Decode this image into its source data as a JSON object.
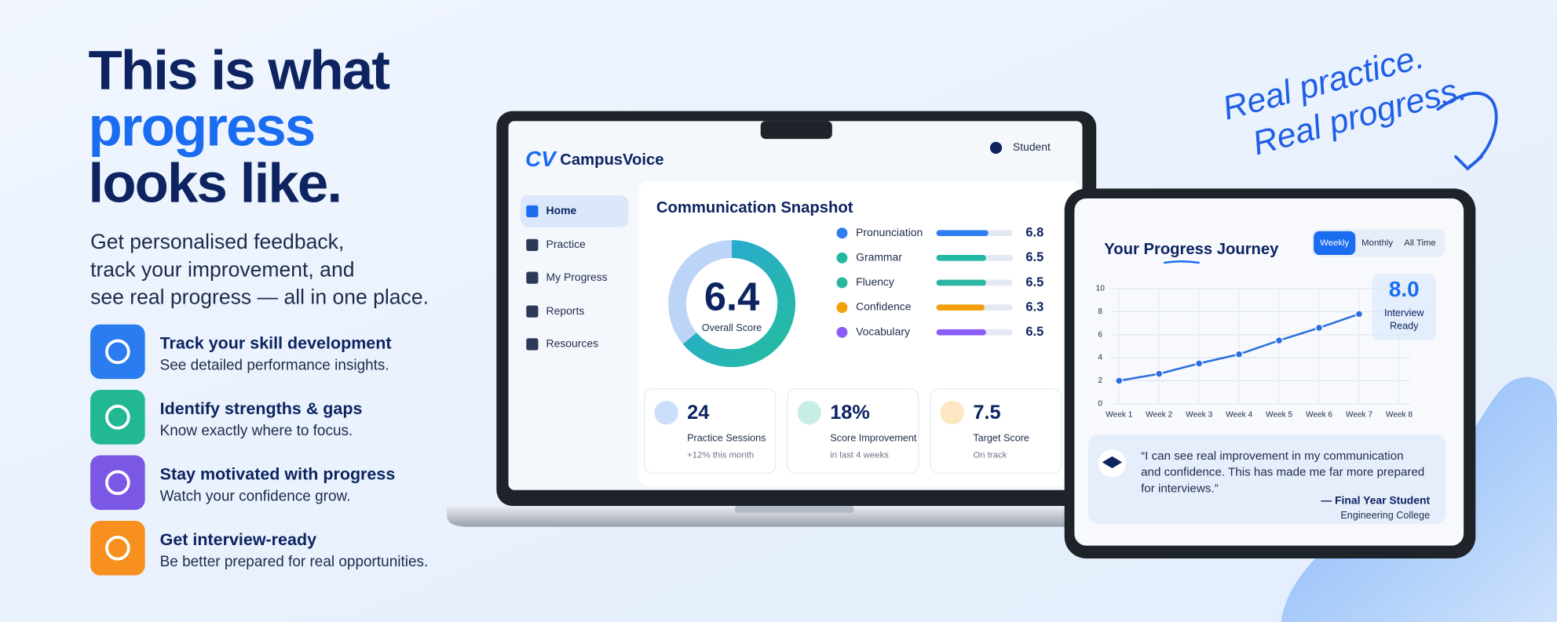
{
  "header": {
    "title_lines": [
      "This is what",
      "progress",
      "looks like."
    ],
    "subtitle_lines": [
      "Get personalised feedback,",
      "track your improvement, and",
      "see real progress — all in one place."
    ]
  },
  "features": [
    {
      "title": "Track your skill development",
      "description": "See detailed performance insights."
    },
    {
      "title": "Identify strengths & gaps",
      "description": "Know exactly where to focus."
    },
    {
      "title": "Stay motivated with progress",
      "description": "Watch your confidence grow."
    },
    {
      "title": "Get interview-ready",
      "description": "Be better prepared for real opportunities."
    }
  ],
  "laptop": {
    "brand": "CampusVoice",
    "logo": "CV",
    "user": "Student",
    "nav": [
      "Home",
      "Practice",
      "My Progress",
      "Reports",
      "Resources"
    ],
    "snapshot": {
      "title": "Communication Snapshot",
      "overall_score": 6.4,
      "overall_label": "Overall Score",
      "skills": [
        {
          "name": "Pronunciation",
          "value": 6.8
        },
        {
          "name": "Grammar",
          "value": 6.5
        },
        {
          "name": "Fluency",
          "value": 6.5
        },
        {
          "name": "Confidence",
          "value": 6.3
        },
        {
          "name": "Vocabulary",
          "value": 6.5
        }
      ]
    },
    "stats": [
      {
        "value": "24",
        "label": "Practice Sessions",
        "note": "+12% this month"
      },
      {
        "value": "18%",
        "label": "Score Improvement",
        "note": "in last 4 weeks"
      },
      {
        "value": "7.5",
        "label": "Target Score",
        "note": "On track"
      }
    ]
  },
  "tablet": {
    "title": "Your Progress Journey",
    "tabs": [
      "Weekly",
      "Monthly",
      "All Time"
    ],
    "chart": {
      "type": "line",
      "categories": [
        "Week 1",
        "Week 2",
        "Week 3",
        "Week 4",
        "Week 5",
        "Week 6",
        "Week 7",
        "Week 8"
      ],
      "values": [
        2.0,
        2.6,
        3.5,
        4.3,
        5.5,
        6.6,
        7.8,
        null
      ],
      "ylim": [
        0,
        10
      ],
      "yticks": [
        0,
        2,
        4,
        6,
        8,
        10
      ]
    },
    "badge": {
      "value": "8.0",
      "label_lines": [
        "Interview",
        "Ready"
      ]
    },
    "testimonial": {
      "quote_lines": [
        "“I can see real improvement in my communication",
        "and confidence. This has made me far more prepared",
        "for interviews.”"
      ],
      "author": "— Final Year Student",
      "affiliation": "Engineering College"
    }
  },
  "tagline": [
    "Real practice.",
    "Real progress."
  ]
}
